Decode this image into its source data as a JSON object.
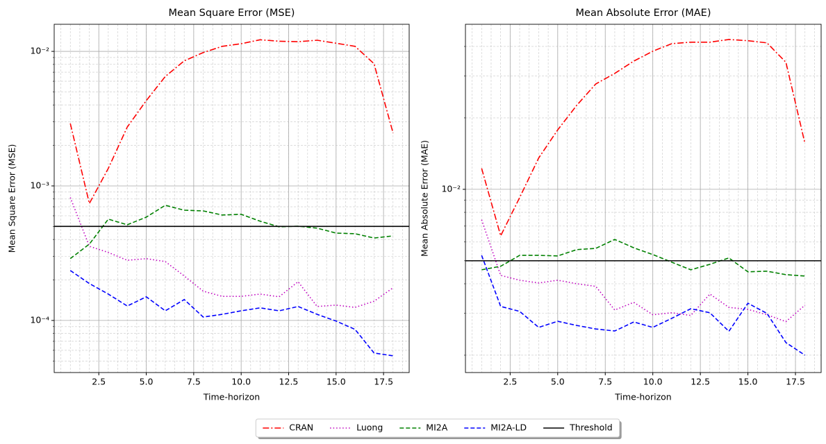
{
  "chart_data": [
    {
      "type": "line",
      "title": "Mean Square Error (MSE)",
      "x_label": "Time-horizon",
      "y_label": "Mean Square Error (MSE)",
      "y_scale": "log",
      "grid": true,
      "minor_grid": true,
      "legend": "lower center",
      "xlim": [
        0.15,
        18.85
      ],
      "ylim": [
        4.1e-05,
        0.0159
      ],
      "xticks": [
        2.5,
        {
          "value": 5,
          "label": "5.0"
        },
        7.5,
        {
          "value": 10,
          "label": "10.0"
        },
        12.5,
        {
          "value": 15,
          "label": "15.0"
        },
        17.5
      ],
      "yticks": [
        {
          "value": 0.01,
          "label": "10⁻²"
        },
        {
          "value": 0.001,
          "label": "10⁻³"
        },
        {
          "value": 0.0001,
          "label": "10⁻⁴"
        }
      ],
      "x": [
        1,
        2,
        3,
        4,
        5,
        6,
        7,
        8,
        9,
        10,
        11,
        12,
        13,
        14,
        15,
        16,
        17,
        18
      ],
      "series": [
        {
          "name": "CRAN",
          "color": "#ff0000",
          "dash": "dashdot",
          "values": [
            0.00291,
            0.00074,
            0.00135,
            0.00274,
            0.0043,
            0.0065,
            0.0085,
            0.0098,
            0.0109,
            0.0114,
            0.0122,
            0.0119,
            0.0118,
            0.0121,
            0.0115,
            0.0109,
            0.0081,
            0.00247
          ]
        },
        {
          "name": "Luong",
          "color": "#bf00bf",
          "dash": "dotted",
          "values": [
            0.00082,
            0.000356,
            0.00032,
            0.00028,
            0.000288,
            0.000274,
            0.000214,
            0.000165,
            0.000151,
            0.000151,
            0.000157,
            0.00015,
            0.000194,
            0.000127,
            0.00013,
            0.000125,
            0.000139,
            0.000175
          ]
        },
        {
          "name": "MI2A",
          "color": "#008000",
          "dash": "dashed",
          "values": [
            0.000288,
            0.000369,
            0.000566,
            0.000514,
            0.000586,
            0.000718,
            0.00066,
            0.000652,
            0.000608,
            0.000615,
            0.000546,
            0.000497,
            0.000502,
            0.000485,
            0.000446,
            0.000441,
            0.00041,
            0.000425
          ]
        },
        {
          "name": "MI2A-LD",
          "color": "#0000ff",
          "dash": "dashed",
          "values": [
            0.000235,
            0.000188,
            0.000157,
            0.000128,
            0.00015,
            0.000118,
            0.000143,
            0.000106,
            0.000111,
            0.000118,
            0.000124,
            0.000118,
            0.000127,
            0.000111,
            9.89e-05,
            8.58e-05,
            5.73e-05,
            5.46e-05
          ]
        }
      ],
      "threshold": {
        "name": "Threshold",
        "value": 0.0005,
        "color": "#000000"
      }
    },
    {
      "type": "line",
      "title": "Mean Absolute Error (MAE)",
      "x_label": "Time-horizon",
      "y_label": "Mean Absolute Error (MAE)",
      "y_scale": "log",
      "grid": true,
      "minor_grid": true,
      "xlim": [
        0.15,
        18.85
      ],
      "ylim": [
        0.00169,
        0.0496
      ],
      "xticks": [
        2.5,
        {
          "value": 5,
          "label": "5.0"
        },
        7.5,
        {
          "value": 10,
          "label": "10.0"
        },
        12.5,
        {
          "value": 15,
          "label": "15.0"
        },
        17.5
      ],
      "yticks": [
        {
          "value": 0.01,
          "label": "10⁻²"
        }
      ],
      "x": [
        1,
        2,
        3,
        4,
        5,
        6,
        7,
        8,
        9,
        10,
        11,
        12,
        13,
        14,
        15,
        16,
        17,
        18
      ],
      "series": [
        {
          "color": "#ff0000",
          "dash": "dashdot",
          "values": [
            0.01225,
            0.00637,
            0.00923,
            0.01355,
            0.0178,
            0.0226,
            0.0278,
            0.0308,
            0.0347,
            0.0382,
            0.0411,
            0.0417,
            0.0417,
            0.0428,
            0.0423,
            0.0414,
            0.0343,
            0.0156
          ]
        },
        {
          "color": "#bf00bf",
          "dash": "dotted",
          "values": [
            0.00744,
            0.00434,
            0.00414,
            0.00403,
            0.00414,
            0.004,
            0.0039,
            0.0031,
            0.00334,
            0.00296,
            0.00302,
            0.00294,
            0.00362,
            0.00318,
            0.00312,
            0.00296,
            0.00277,
            0.00325
          ]
        },
        {
          "color": "#008000",
          "dash": "dashed",
          "values": [
            0.00458,
            0.00474,
            0.00527,
            0.00527,
            0.00524,
            0.00557,
            0.00564,
            0.00615,
            0.00567,
            0.00531,
            0.00493,
            0.00458,
            0.00483,
            0.00514,
            0.00449,
            0.00452,
            0.00437,
            0.00431
          ]
        },
        {
          "color": "#0000ff",
          "dash": "dashed",
          "values": [
            0.00527,
            0.00321,
            0.00306,
            0.00262,
            0.00278,
            0.00267,
            0.00258,
            0.00253,
            0.00276,
            0.00262,
            0.00286,
            0.00314,
            0.00302,
            0.00252,
            0.00331,
            0.003,
            0.00226,
            0.002
          ]
        }
      ],
      "threshold": {
        "value": 0.005,
        "color": "#000000"
      }
    }
  ]
}
